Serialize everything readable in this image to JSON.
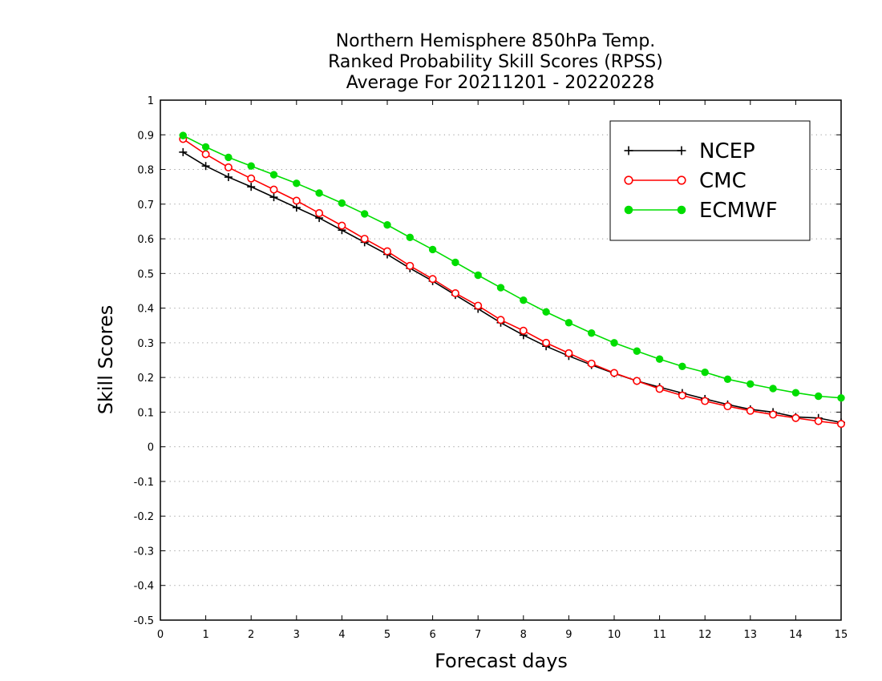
{
  "chart_data": {
    "type": "line",
    "title": [
      "Northern Hemisphere 850hPa Temp.",
      "Ranked Probability Skill Scores (RPSS)",
      "Average For 20211201 - 20220228"
    ],
    "xlabel": "Forecast days",
    "ylabel": "Skill Scores",
    "xlim": [
      0,
      15
    ],
    "ylim": [
      -0.5,
      1
    ],
    "xticks": [
      "0",
      "1",
      "2",
      "3",
      "4",
      "5",
      "6",
      "7",
      "8",
      "9",
      "10",
      "11",
      "12",
      "13",
      "14",
      "15"
    ],
    "yticks": [
      "1",
      "0.9",
      "0.8",
      "0.7",
      "0.6",
      "0.5",
      "0.4",
      "0.3",
      "0.2",
      "0.1",
      "0",
      "-0.1",
      "-0.2",
      "-0.3",
      "-0.4",
      "-0.5"
    ],
    "grid": "horizontal-dotted",
    "legend_position": "top-right",
    "x": [
      0.5,
      1,
      1.5,
      2,
      2.5,
      3,
      3.5,
      4,
      4.5,
      5,
      5.5,
      6,
      6.5,
      7,
      7.5,
      8,
      8.5,
      9,
      9.5,
      10,
      10.5,
      11,
      11.5,
      12,
      12.5,
      13,
      13.5,
      14,
      14.5,
      15
    ],
    "series": [
      {
        "name": "NCEP",
        "color": "#000000",
        "marker": "plus",
        "values": [
          0.85,
          0.81,
          0.778,
          0.75,
          0.72,
          0.69,
          0.66,
          0.625,
          0.59,
          0.555,
          0.515,
          0.478,
          0.438,
          0.398,
          0.358,
          0.322,
          0.29,
          0.262,
          0.236,
          0.212,
          0.19,
          0.172,
          0.155,
          0.138,
          0.122,
          0.108,
          0.1,
          0.086,
          0.083,
          0.07
        ]
      },
      {
        "name": "CMC",
        "color": "#ff0000",
        "marker": "open-circle",
        "values": [
          0.888,
          0.844,
          0.806,
          0.774,
          0.742,
          0.71,
          0.674,
          0.638,
          0.6,
          0.564,
          0.522,
          0.484,
          0.443,
          0.407,
          0.366,
          0.335,
          0.3,
          0.27,
          0.24,
          0.213,
          0.19,
          0.167,
          0.148,
          0.132,
          0.117,
          0.104,
          0.093,
          0.083,
          0.074,
          0.066
        ]
      },
      {
        "name": "ECMWF",
        "color": "#00dd00",
        "marker": "filled-circle",
        "values": [
          0.898,
          0.865,
          0.835,
          0.81,
          0.785,
          0.76,
          0.732,
          0.703,
          0.672,
          0.64,
          0.604,
          0.569,
          0.532,
          0.495,
          0.459,
          0.423,
          0.389,
          0.358,
          0.328,
          0.3,
          0.276,
          0.253,
          0.232,
          0.215,
          0.195,
          0.181,
          0.168,
          0.156,
          0.146,
          0.141
        ]
      }
    ]
  }
}
